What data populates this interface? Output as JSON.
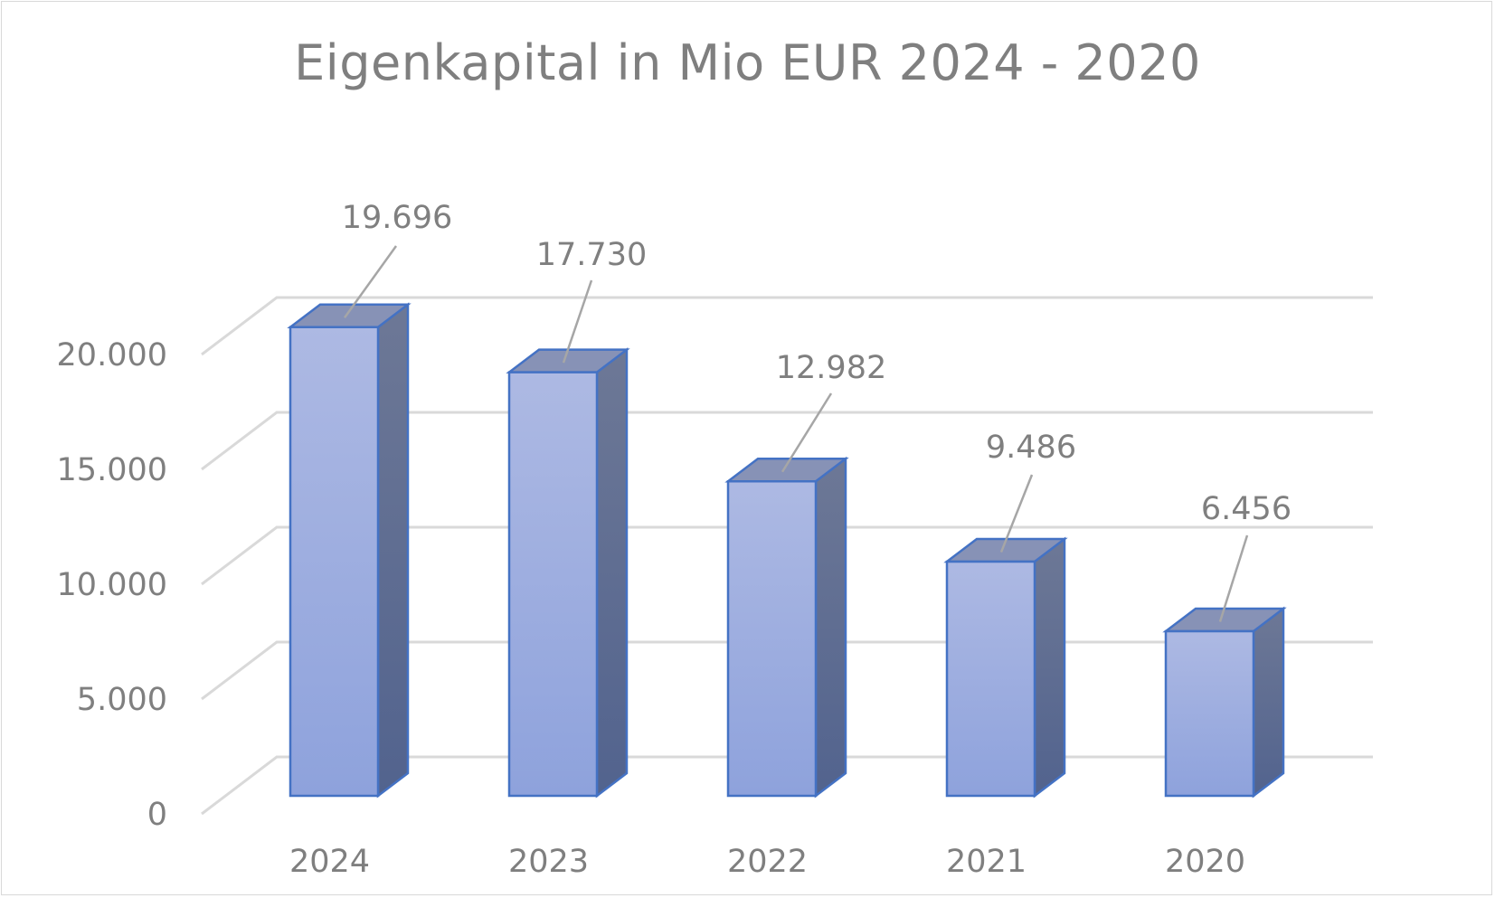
{
  "chart_data": {
    "type": "bar",
    "style": "3d-column",
    "title": "Eigenkapital in Mio EUR 2024 - 2020",
    "categories": [
      "2024",
      "2023",
      "2022",
      "2021",
      "2020"
    ],
    "values": [
      19696,
      17730,
      12982,
      9486,
      6456
    ],
    "data_labels": [
      "19.696",
      "17.730",
      "12.982",
      "9.486",
      "6.456"
    ],
    "y_ticks": [
      0,
      5000,
      10000,
      15000,
      20000
    ],
    "y_tick_labels": [
      "0",
      "5.000",
      "10.000",
      "15.000",
      "20.000"
    ],
    "ylim": [
      0,
      20000
    ],
    "xlabel": "",
    "ylabel": "",
    "grid": true,
    "legend": "none",
    "colors": {
      "bar_front_top": "#adb9e3",
      "bar_front_bottom": "#8ea2dc",
      "bar_side": "#5b6b93",
      "bar_top": "#8792b6",
      "bar_border": "#4472c4",
      "grid": "#d9d9d9",
      "text": "#7f7f7f",
      "leader": "#a6a6a6"
    }
  }
}
